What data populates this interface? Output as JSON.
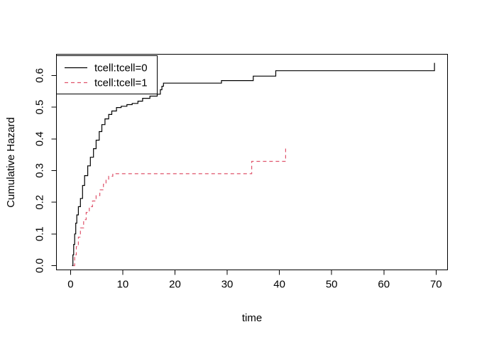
{
  "figure": {
    "background": "#ffffff"
  },
  "chart_data": {
    "type": "line",
    "subtype": "step-after",
    "title": "",
    "xlabel": "time",
    "ylabel": "Cumulative Hazard",
    "xlim": [
      -2.7,
      72.2
    ],
    "ylim": [
      -0.0134,
      0.667
    ],
    "x_ticks": [
      "0",
      "10",
      "20",
      "30",
      "40",
      "50",
      "60",
      "70"
    ],
    "y_ticks": [
      "0.0",
      "0.1",
      "0.2",
      "0.3",
      "0.4",
      "0.5",
      "0.6"
    ],
    "grid": false,
    "legend_position": "topleft",
    "series": [
      {
        "name": "tcell:tcell=0",
        "color": "#000000",
        "linestyle": "solid",
        "points": [
          [
            0.3,
            0.0
          ],
          [
            0.45,
            0.034
          ],
          [
            0.6,
            0.067
          ],
          [
            0.8,
            0.1
          ],
          [
            1.0,
            0.134
          ],
          [
            1.2,
            0.16
          ],
          [
            1.5,
            0.186
          ],
          [
            1.9,
            0.212
          ],
          [
            2.3,
            0.253
          ],
          [
            2.7,
            0.284
          ],
          [
            3.3,
            0.315
          ],
          [
            3.8,
            0.342
          ],
          [
            4.4,
            0.369
          ],
          [
            4.9,
            0.396
          ],
          [
            5.5,
            0.423
          ],
          [
            6.0,
            0.445
          ],
          [
            6.6,
            0.463
          ],
          [
            7.3,
            0.477
          ],
          [
            7.9,
            0.488
          ],
          [
            8.8,
            0.499
          ],
          [
            9.7,
            0.503
          ],
          [
            10.8,
            0.508
          ],
          [
            11.8,
            0.512
          ],
          [
            12.9,
            0.519
          ],
          [
            13.8,
            0.528
          ],
          [
            15.2,
            0.535
          ],
          [
            16.6,
            0.541
          ],
          [
            17.2,
            0.555
          ],
          [
            17.5,
            0.566
          ],
          [
            17.8,
            0.576
          ],
          [
            28.9,
            0.584
          ],
          [
            35.0,
            0.598
          ],
          [
            39.3,
            0.615
          ],
          [
            69.7,
            0.64
          ]
        ]
      },
      {
        "name": "tcell:tcell=1",
        "color": "#DF536B",
        "linestyle": "dashed",
        "points": [
          [
            0.55,
            0.0
          ],
          [
            0.8,
            0.034
          ],
          [
            1.1,
            0.06
          ],
          [
            1.5,
            0.09
          ],
          [
            1.9,
            0.119
          ],
          [
            2.5,
            0.145
          ],
          [
            3.0,
            0.168
          ],
          [
            3.6,
            0.186
          ],
          [
            4.2,
            0.204
          ],
          [
            4.9,
            0.221
          ],
          [
            5.6,
            0.239
          ],
          [
            6.3,
            0.257
          ],
          [
            6.8,
            0.273
          ],
          [
            7.3,
            0.282
          ],
          [
            8.1,
            0.29
          ],
          [
            34.7,
            0.329
          ],
          [
            41.2,
            0.374
          ]
        ]
      }
    ]
  }
}
